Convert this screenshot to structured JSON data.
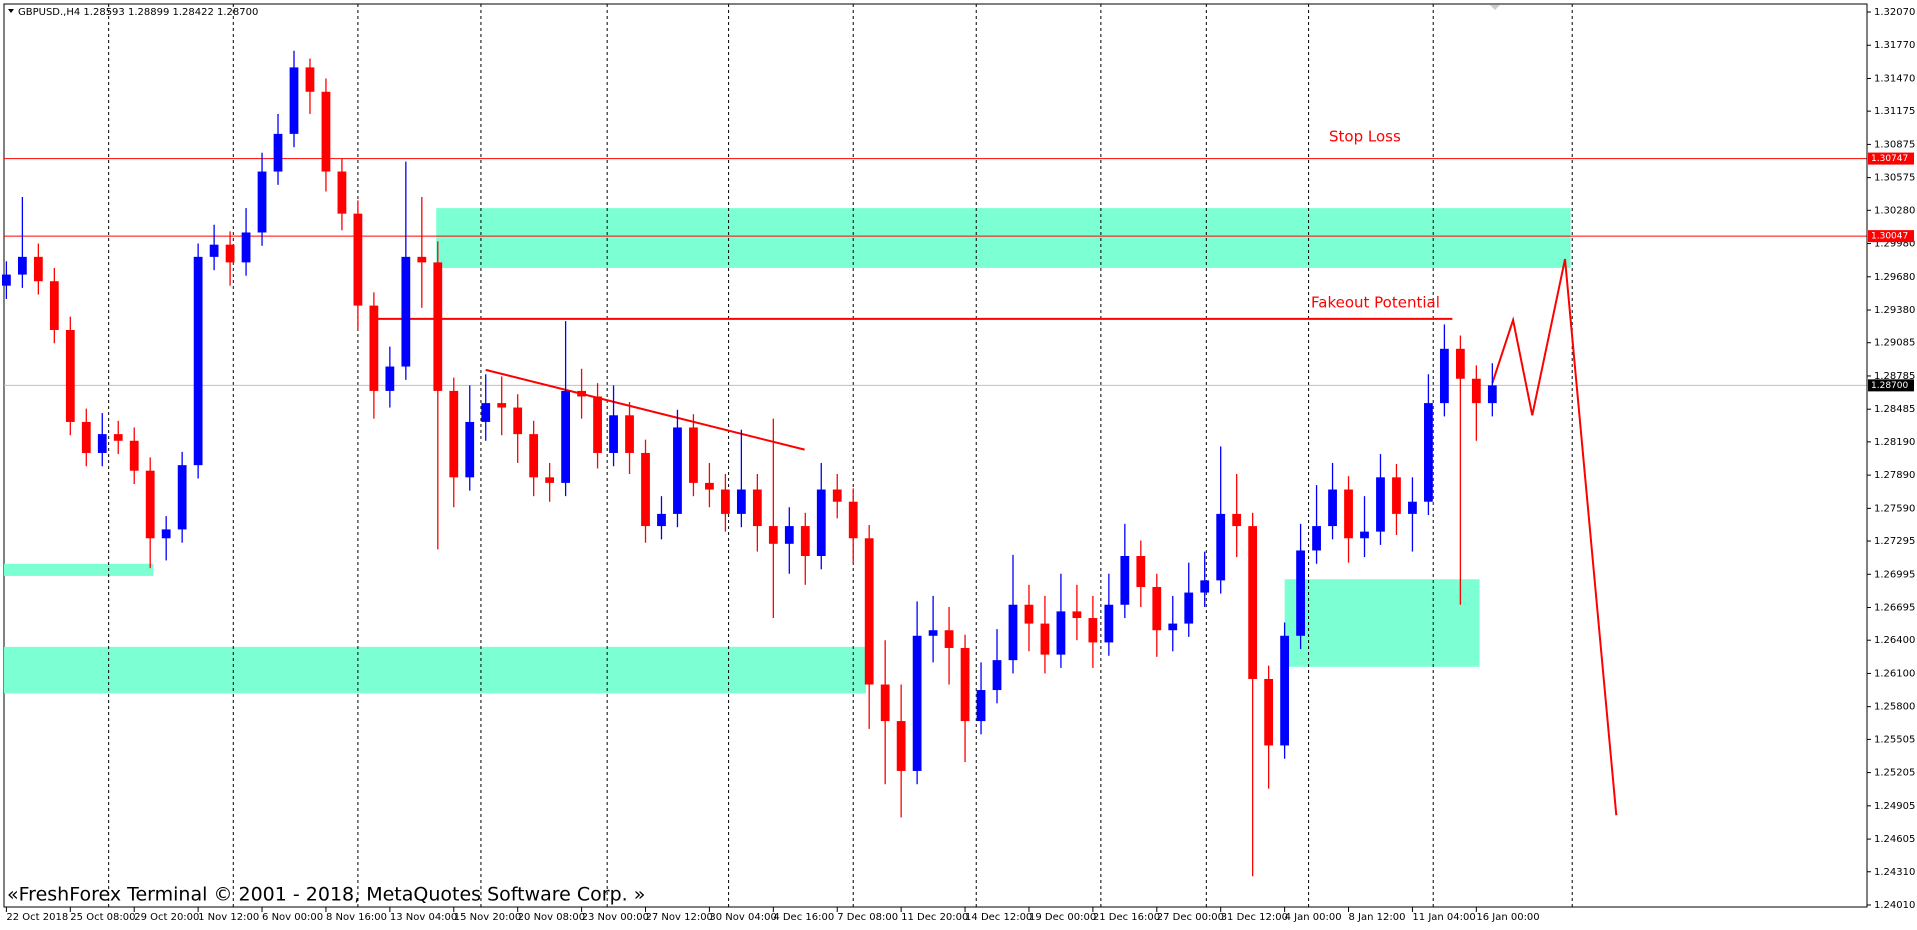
{
  "chart_data": {
    "type": "candlestick",
    "title": "GBPUSD.,H4  1.28593 1.28899 1.28422 1.28700",
    "watermark": "«FreshForex Terminal © 2001 - 2018, MetaQuotes Software Corp. »",
    "annotations": [
      "Stop Loss",
      "Fakeout Potential"
    ],
    "up_color": "#0000ff",
    "down_color": "#ff0000",
    "zone_color": "#7dffd4",
    "line_color": "#ff0000",
    "xlim": [
      -0.15,
      116.45
    ],
    "ylim": [
      1.2401,
      1.3207
    ],
    "xticks": [
      {
        "value": 0,
        "label": "22 Oct 2018"
      },
      {
        "value": 4,
        "label": "25 Oct 08:00"
      },
      {
        "value": 8,
        "label": "29 Oct 20:00"
      },
      {
        "value": 12,
        "label": "1 Nov 12:00"
      },
      {
        "value": 16,
        "label": "6 Nov 00:00"
      },
      {
        "value": 20,
        "label": "8 Nov 16:00"
      },
      {
        "value": 24,
        "label": "13 Nov 04:00"
      },
      {
        "value": 28,
        "label": "15 Nov 20:00"
      },
      {
        "value": 32,
        "label": "20 Nov 08:00"
      },
      {
        "value": 36,
        "label": "23 Nov 00:00"
      },
      {
        "value": 40,
        "label": "27 Nov 12:00"
      },
      {
        "value": 44,
        "label": "30 Nov 04:00"
      },
      {
        "value": 48,
        "label": "4 Dec 16:00"
      },
      {
        "value": 52,
        "label": "7 Dec 08:00"
      },
      {
        "value": 56,
        "label": "11 Dec 20:00"
      },
      {
        "value": 60,
        "label": "14 Dec 12:00"
      },
      {
        "value": 64,
        "label": "19 Dec 00:00"
      },
      {
        "value": 68,
        "label": "21 Dec 16:00"
      },
      {
        "value": 72,
        "label": "27 Dec 00:00"
      },
      {
        "value": 76,
        "label": "31 Dec 12:00"
      },
      {
        "value": 80,
        "label": "4 Jan 00:00"
      },
      {
        "value": 84,
        "label": "8 Jan 12:00"
      },
      {
        "value": 88,
        "label": "11 Jan 04:00"
      },
      {
        "value": 92,
        "label": "16 Jan 00:00"
      }
    ],
    "xgrid": [
      6.4,
      14.2,
      22,
      29.7,
      37.6,
      45.2,
      53,
      60.7,
      68.5,
      75.1,
      81.5,
      89.3,
      98
    ],
    "yticks": [
      {
        "value": 1.3207,
        "label": "1.32070"
      },
      {
        "value": 1.3177,
        "label": "1.31770"
      },
      {
        "value": 1.3147,
        "label": "1.31470"
      },
      {
        "value": 1.31175,
        "label": "1.31175"
      },
      {
        "value": 1.30875,
        "label": "1.30875"
      },
      {
        "value": 1.30575,
        "label": "1.30575"
      },
      {
        "value": 1.3028,
        "label": "1.30280"
      },
      {
        "value": 1.2998,
        "label": "1.29980"
      },
      {
        "value": 1.2968,
        "label": "1.29680"
      },
      {
        "value": 1.2938,
        "label": "1.29380"
      },
      {
        "value": 1.29085,
        "label": "1.29085"
      },
      {
        "value": 1.28785,
        "label": "1.28785"
      },
      {
        "value": 1.28485,
        "label": "1.28485"
      },
      {
        "value": 1.2819,
        "label": "1.28190"
      },
      {
        "value": 1.2789,
        "label": "1.27890"
      },
      {
        "value": 1.2759,
        "label": "1.27590"
      },
      {
        "value": 1.27295,
        "label": "1.27295"
      },
      {
        "value": 1.26995,
        "label": "1.26995"
      },
      {
        "value": 1.26695,
        "label": "1.26695"
      },
      {
        "value": 1.264,
        "label": "1.26400"
      },
      {
        "value": 1.261,
        "label": "1.26100"
      },
      {
        "value": 1.258,
        "label": "1.25800"
      },
      {
        "value": 1.25505,
        "label": "1.25505"
      },
      {
        "value": 1.25205,
        "label": "1.25205"
      },
      {
        "value": 1.24905,
        "label": "1.24905"
      },
      {
        "value": 1.24605,
        "label": "1.24605"
      },
      {
        "value": 1.2431,
        "label": "1.24310"
      },
      {
        "value": 1.2401,
        "label": "1.24010"
      }
    ],
    "levels": [
      {
        "value": 1.30747,
        "color": "#ff0000"
      },
      {
        "value": 1.30047,
        "color": "#ff0000"
      },
      {
        "value": 1.287,
        "label": "1.28700",
        "color": "#000000"
      }
    ],
    "zones": [
      {
        "x": [
          26.9,
          97.9
        ],
        "y": [
          1.2976,
          1.303
        ]
      },
      {
        "x": [
          -0.15,
          9.2
        ],
        "y": [
          1.2698,
          1.2709
        ]
      },
      {
        "x": [
          -0.15,
          53.8
        ],
        "y": [
          1.2592,
          1.2634
        ]
      },
      {
        "x": [
          80,
          92.2
        ],
        "y": [
          1.2616,
          1.2695
        ]
      }
    ],
    "lines": [
      {
        "x": [
          30,
          49.96
        ],
        "y": [
          1.2884,
          1.2812
        ]
      },
      {
        "x": [
          22.95,
          90.5
        ],
        "y": [
          1.293,
          1.293
        ]
      },
      {
        "x": [
          93,
          94.3,
          95.5,
          97.55,
          100.76
        ],
        "y": [
          1.2872,
          1.2929,
          1.2843,
          1.2984,
          1.2482
        ]
      }
    ],
    "open": [
      1.296,
      1.297,
      1.2986,
      1.2964,
      1.292,
      1.2837,
      1.2809,
      1.2826,
      1.282,
      1.2793,
      1.2732,
      1.274,
      1.2798,
      1.2986,
      1.2997,
      1.2981,
      1.3008,
      1.3063,
      1.3097,
      1.3157,
      1.3135,
      1.3063,
      1.3025,
      1.2942,
      1.2865,
      1.2887,
      1.2986,
      1.2981,
      1.2865,
      1.2787,
      1.2837,
      1.2854,
      1.285,
      1.2826,
      1.2787,
      1.2782,
      1.2865,
      1.286,
      1.2809,
      1.2843,
      1.2809,
      1.2743,
      1.2754,
      1.2832,
      1.2782,
      1.2776,
      1.2754,
      1.2776,
      1.2743,
      1.2727,
      1.2743,
      1.2716,
      1.2776,
      1.2765,
      1.2732,
      1.26,
      1.2567,
      1.2522,
      1.2644,
      1.2649,
      1.2633,
      1.2567,
      1.2595,
      1.2622,
      1.2672,
      1.2655,
      1.2627,
      1.2666,
      1.266,
      1.2638,
      1.2672,
      1.2716,
      1.2688,
      1.2649,
      1.2655,
      1.2683,
      1.2694,
      1.2754,
      1.2743,
      1.2605,
      1.2545,
      1.2644,
      1.2721,
      1.2743,
      1.2776,
      1.2732,
      1.2738,
      1.2787,
      1.2754,
      1.2765,
      1.2854,
      1.2903,
      1.2876,
      1.2854
    ],
    "high": [
      1.2982,
      1.304,
      1.2998,
      1.2976,
      1.2932,
      1.2849,
      1.2845,
      1.2838,
      1.2832,
      1.2805,
      1.2752,
      1.281,
      1.2998,
      1.3015,
      1.3009,
      1.303,
      1.308,
      1.3115,
      1.3172,
      1.3165,
      1.3147,
      1.3075,
      1.3037,
      1.2954,
      1.2905,
      1.3072,
      1.304,
      1.3,
      1.2877,
      1.287,
      1.288,
      1.2878,
      1.2862,
      1.2838,
      1.28,
      1.2928,
      1.2885,
      1.2872,
      1.287,
      1.2855,
      1.2821,
      1.277,
      1.2848,
      1.2844,
      1.28,
      1.279,
      1.283,
      1.279,
      1.284,
      1.276,
      1.2755,
      1.28,
      1.279,
      1.2777,
      1.2744,
      1.264,
      1.26,
      1.2675,
      1.268,
      1.267,
      1.2645,
      1.262,
      1.265,
      1.2717,
      1.269,
      1.268,
      1.27,
      1.269,
      1.268,
      1.27,
      1.2745,
      1.273,
      1.27,
      1.268,
      1.271,
      1.272,
      1.2815,
      1.279,
      1.2755,
      1.2617,
      1.2656,
      1.2745,
      1.278,
      1.28,
      1.2788,
      1.277,
      1.2808,
      1.2799,
      1.2787,
      1.288,
      1.2925,
      1.2915,
      1.2888,
      1.289
    ],
    "low": [
      1.2948,
      1.2958,
      1.2952,
      1.2908,
      1.2825,
      1.2797,
      1.2797,
      1.2808,
      1.2781,
      1.2705,
      1.2712,
      1.2728,
      1.2786,
      1.2974,
      1.296,
      1.2969,
      1.2996,
      1.3051,
      1.3085,
      1.3115,
      1.3045,
      1.301,
      1.292,
      1.284,
      1.285,
      1.2875,
      1.294,
      1.2722,
      1.276,
      1.2775,
      1.282,
      1.2825,
      1.28,
      1.277,
      1.2765,
      1.277,
      1.284,
      1.2795,
      1.2797,
      1.279,
      1.2728,
      1.2731,
      1.2742,
      1.277,
      1.276,
      1.2738,
      1.2742,
      1.272,
      1.266,
      1.27,
      1.269,
      1.2704,
      1.275,
      1.271,
      1.256,
      1.251,
      1.248,
      1.251,
      1.262,
      1.26,
      1.253,
      1.2555,
      1.2583,
      1.261,
      1.263,
      1.261,
      1.2615,
      1.264,
      1.2615,
      1.2626,
      1.266,
      1.267,
      1.2625,
      1.263,
      1.2643,
      1.267,
      1.2682,
      1.2715,
      1.2427,
      1.2506,
      1.2533,
      1.2632,
      1.2709,
      1.2731,
      1.271,
      1.2715,
      1.2726,
      1.2735,
      1.272,
      1.2753,
      1.2842,
      1.2672,
      1.282,
      1.2842
    ],
    "close": [
      1.297,
      1.2986,
      1.2964,
      1.292,
      1.2837,
      1.2809,
      1.2826,
      1.282,
      1.2793,
      1.2732,
      1.274,
      1.2798,
      1.2986,
      1.2997,
      1.2981,
      1.3008,
      1.3063,
      1.3097,
      1.3157,
      1.3135,
      1.3063,
      1.3025,
      1.2942,
      1.2865,
      1.2887,
      1.2986,
      1.2981,
      1.2865,
      1.2787,
      1.2837,
      1.2854,
      1.285,
      1.2826,
      1.2787,
      1.2782,
      1.2865,
      1.286,
      1.2809,
      1.2843,
      1.2809,
      1.2743,
      1.2754,
      1.2832,
      1.2782,
      1.2776,
      1.2754,
      1.2776,
      1.2743,
      1.2727,
      1.2743,
      1.2716,
      1.2776,
      1.2765,
      1.2732,
      1.26,
      1.2567,
      1.2522,
      1.2644,
      1.2649,
      1.2633,
      1.2567,
      1.2595,
      1.2622,
      1.2672,
      1.2655,
      1.2627,
      1.2666,
      1.266,
      1.2638,
      1.2672,
      1.2716,
      1.2688,
      1.2649,
      1.2655,
      1.2683,
      1.2694,
      1.2754,
      1.2743,
      1.2605,
      1.2545,
      1.2644,
      1.2721,
      1.2743,
      1.2776,
      1.2732,
      1.2738,
      1.2787,
      1.2754,
      1.2765,
      1.2854,
      1.2903,
      1.2876,
      1.2854,
      1.287
    ]
  }
}
